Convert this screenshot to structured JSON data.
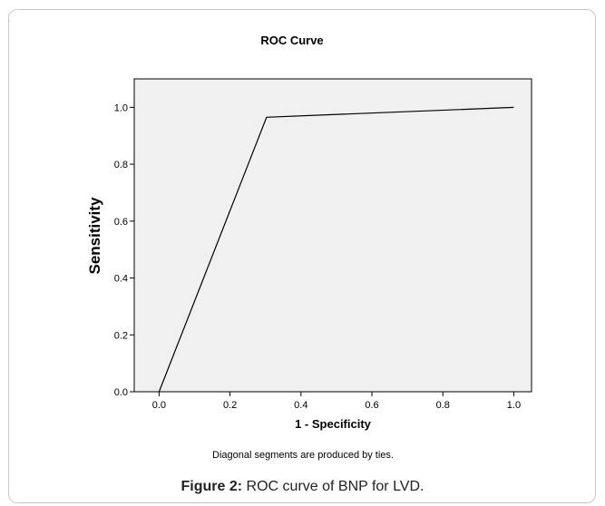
{
  "chart_data": {
    "type": "line",
    "title": "ROC Curve",
    "xlabel": "1 - Specificity",
    "ylabel": "Sensitivity",
    "xlim": [
      -0.07,
      1.05
    ],
    "ylim": [
      0.0,
      1.1
    ],
    "xticks": [
      "0.0",
      "0.2",
      "0.4",
      "0.6",
      "0.8",
      "1.0"
    ],
    "yticks": [
      "0.0",
      "0.2",
      "0.4",
      "0.6",
      "0.8",
      "1.0"
    ],
    "x": [
      0.0,
      0.303,
      1.0
    ],
    "y": [
      0.0,
      0.965,
      1.0
    ],
    "note": "Diagonal segments are produced by ties.",
    "plot_background": "#f0f0f0",
    "line_color": "#000000",
    "grid": false,
    "legend": "none"
  },
  "caption": {
    "label": "Figure 2:",
    "text": "ROC curve of BNP for LVD."
  }
}
